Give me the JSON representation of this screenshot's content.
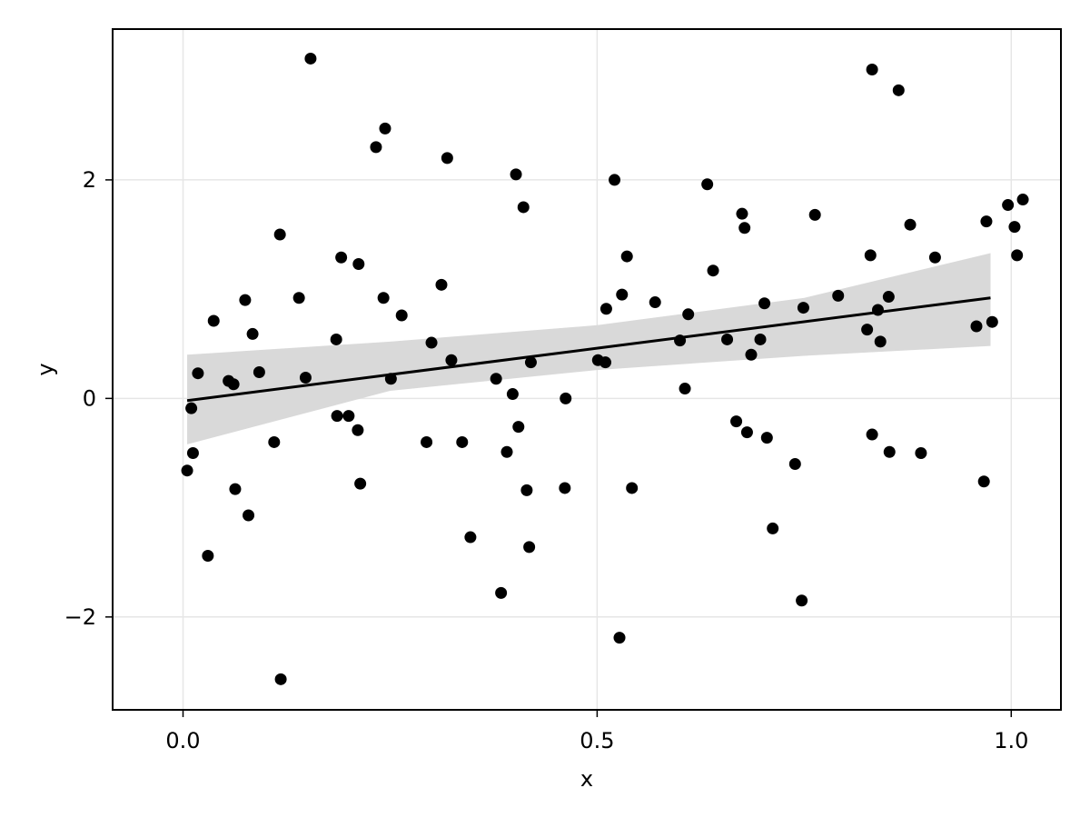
{
  "chart_data": {
    "type": "scatter",
    "xlabel": "x",
    "ylabel": "y",
    "xlim": [
      -0.085,
      1.06
    ],
    "ylim": [
      -2.85,
      3.38
    ],
    "xticks": [
      0.0,
      0.5,
      1.0
    ],
    "xtick_labels": [
      "0.0",
      "0.5",
      "1.0"
    ],
    "yticks": [
      -2,
      0,
      2
    ],
    "ytick_labels": [
      "−2",
      "0",
      "2"
    ],
    "grid": true,
    "points": [
      [
        0.005,
        -0.66
      ],
      [
        0.01,
        -0.09
      ],
      [
        0.012,
        -0.5
      ],
      [
        0.018,
        0.23
      ],
      [
        0.03,
        -1.44
      ],
      [
        0.037,
        0.71
      ],
      [
        0.055,
        0.16
      ],
      [
        0.061,
        0.13
      ],
      [
        0.063,
        -0.83
      ],
      [
        0.075,
        0.9
      ],
      [
        0.079,
        -1.07
      ],
      [
        0.084,
        0.59
      ],
      [
        0.092,
        0.24
      ],
      [
        0.11,
        -0.4
      ],
      [
        0.117,
        1.5
      ],
      [
        0.118,
        -2.57
      ],
      [
        0.14,
        0.92
      ],
      [
        0.148,
        0.19
      ],
      [
        0.154,
        3.11
      ],
      [
        0.185,
        0.54
      ],
      [
        0.186,
        -0.16
      ],
      [
        0.191,
        1.29
      ],
      [
        0.2,
        -0.16
      ],
      [
        0.211,
        -0.29
      ],
      [
        0.212,
        1.23
      ],
      [
        0.214,
        -0.78
      ],
      [
        0.233,
        2.3
      ],
      [
        0.242,
        0.92
      ],
      [
        0.244,
        2.47
      ],
      [
        0.251,
        0.18
      ],
      [
        0.264,
        0.76
      ],
      [
        0.294,
        -0.4
      ],
      [
        0.3,
        0.51
      ],
      [
        0.312,
        1.04
      ],
      [
        0.319,
        2.2
      ],
      [
        0.324,
        0.35
      ],
      [
        0.337,
        -0.4
      ],
      [
        0.347,
        -1.27
      ],
      [
        0.378,
        0.18
      ],
      [
        0.384,
        -1.78
      ],
      [
        0.391,
        -0.49
      ],
      [
        0.398,
        0.04
      ],
      [
        0.402,
        2.05
      ],
      [
        0.405,
        -0.26
      ],
      [
        0.411,
        1.75
      ],
      [
        0.415,
        -0.84
      ],
      [
        0.418,
        -1.36
      ],
      [
        0.42,
        0.33
      ],
      [
        0.461,
        -0.82
      ],
      [
        0.462,
        0.0
      ],
      [
        0.501,
        0.35
      ],
      [
        0.51,
        0.33
      ],
      [
        0.511,
        0.82
      ],
      [
        0.521,
        2.0
      ],
      [
        0.527,
        -2.19
      ],
      [
        0.53,
        0.95
      ],
      [
        0.536,
        1.3
      ],
      [
        0.542,
        -0.82
      ],
      [
        0.57,
        0.88
      ],
      [
        0.6,
        0.53
      ],
      [
        0.606,
        0.09
      ],
      [
        0.61,
        0.77
      ],
      [
        0.633,
        1.96
      ],
      [
        0.64,
        1.17
      ],
      [
        0.657,
        0.54
      ],
      [
        0.668,
        -0.21
      ],
      [
        0.675,
        1.69
      ],
      [
        0.678,
        1.56
      ],
      [
        0.681,
        -0.31
      ],
      [
        0.686,
        0.4
      ],
      [
        0.697,
        0.54
      ],
      [
        0.702,
        0.87
      ],
      [
        0.705,
        -0.36
      ],
      [
        0.712,
        -1.19
      ],
      [
        0.739,
        -0.6
      ],
      [
        0.747,
        -1.85
      ],
      [
        0.749,
        0.83
      ],
      [
        0.763,
        1.68
      ],
      [
        0.791,
        0.94
      ],
      [
        0.826,
        0.63
      ],
      [
        0.83,
        1.31
      ],
      [
        0.832,
        -0.33
      ],
      [
        0.832,
        3.01
      ],
      [
        0.839,
        0.81
      ],
      [
        0.842,
        0.52
      ],
      [
        0.852,
        0.93
      ],
      [
        0.853,
        -0.49
      ],
      [
        0.864,
        2.82
      ],
      [
        0.878,
        1.59
      ],
      [
        0.891,
        -0.5
      ],
      [
        0.908,
        1.29
      ],
      [
        0.958,
        0.66
      ],
      [
        0.967,
        -0.76
      ],
      [
        0.97,
        1.62
      ],
      [
        0.977,
        0.7
      ],
      [
        0.996,
        1.77
      ],
      [
        1.004,
        1.57
      ],
      [
        1.007,
        1.31
      ],
      [
        1.014,
        1.82
      ]
    ],
    "fit_line": {
      "x": [
        0.005,
        0.975
      ],
      "y": [
        -0.02,
        0.92
      ]
    },
    "confidence_band": {
      "x": [
        0.005,
        0.25,
        0.5,
        0.75,
        0.975
      ],
      "upper": [
        0.4,
        0.52,
        0.67,
        0.92,
        1.33
      ],
      "lower": [
        -0.42,
        0.07,
        0.26,
        0.39,
        0.48
      ]
    },
    "colors": {
      "points": "#000000",
      "line": "#000000",
      "band": "#d9d9d9",
      "grid": "#e6e6e6",
      "frame": "#000000"
    }
  }
}
